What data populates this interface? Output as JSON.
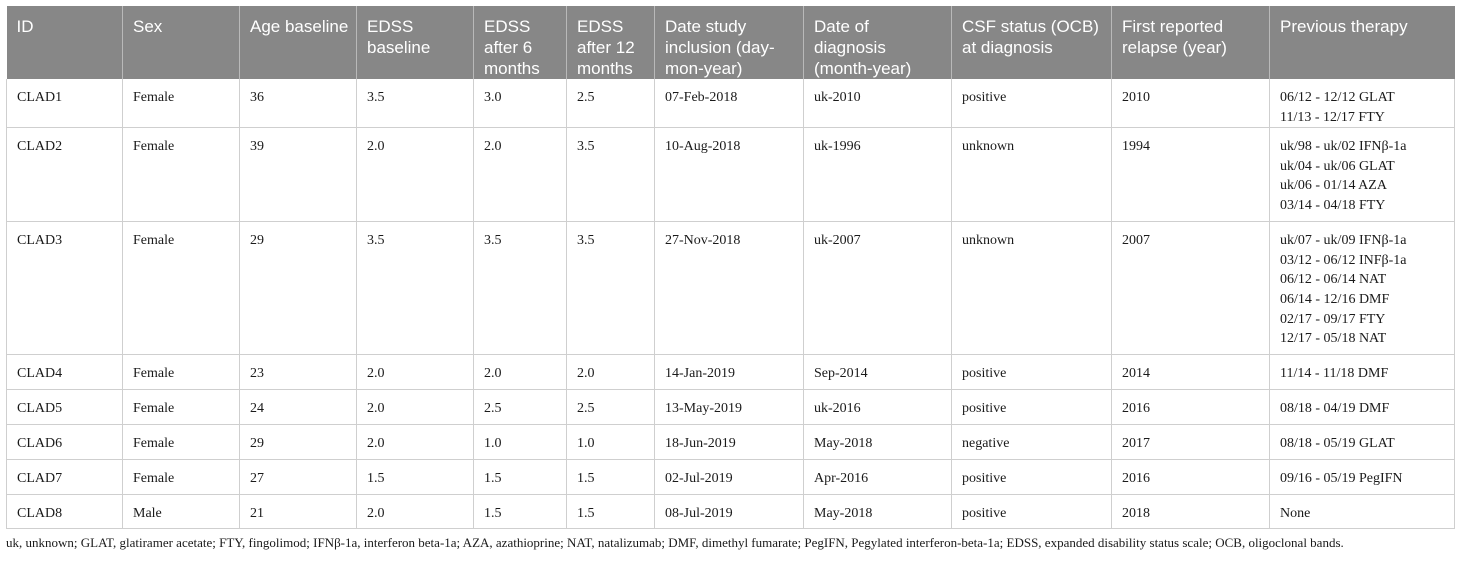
{
  "table": {
    "headers": [
      "ID",
      "Sex",
      "Age baseline",
      "EDSS baseline",
      "EDSS after 6 months",
      "EDSS after 12 months",
      "Date study inclusion (day-mon-year)",
      "Date of diagnosis (month-year)",
      "CSF status (OCB) at diagnosis",
      "First reported relapse (year)",
      "Previous therapy"
    ],
    "rows": [
      {
        "cells": [
          "CLAD1",
          "Female",
          "36",
          "3.5",
          "3.0",
          "2.5",
          "07-Feb-2018",
          "uk-2010",
          "positive",
          "2010"
        ],
        "therapy": [
          "06/12 - 12/12 GLAT",
          "11/13 - 12/17 FTY"
        ]
      },
      {
        "cells": [
          "CLAD2",
          "Female",
          "39",
          "2.0",
          "2.0",
          "3.5",
          "10-Aug-2018",
          "uk-1996",
          "unknown",
          "1994"
        ],
        "therapy": [
          "uk/98 - uk/02 IFNβ-1a",
          "uk/04 - uk/06 GLAT",
          "uk/06 - 01/14 AZA",
          "03/14 - 04/18 FTY"
        ]
      },
      {
        "cells": [
          "CLAD3",
          "Female",
          "29",
          "3.5",
          "3.5",
          "3.5",
          "27-Nov-2018",
          "uk-2007",
          "unknown",
          "2007"
        ],
        "therapy": [
          "uk/07 - uk/09 IFNβ-1a",
          "03/12 - 06/12 INFβ-1a",
          "06/12 - 06/14 NAT",
          "06/14 - 12/16 DMF",
          "02/17 - 09/17 FTY",
          "12/17 - 05/18 NAT"
        ]
      },
      {
        "cells": [
          "CLAD4",
          "Female",
          "23",
          "2.0",
          "2.0",
          "2.0",
          "14-Jan-2019",
          "Sep-2014",
          "positive",
          "2014"
        ],
        "therapy": [
          "11/14 - 11/18 DMF"
        ]
      },
      {
        "cells": [
          "CLAD5",
          "Female",
          "24",
          "2.0",
          "2.5",
          "2.5",
          "13-May-2019",
          "uk-2016",
          "positive",
          "2016"
        ],
        "therapy": [
          "08/18 - 04/19 DMF"
        ]
      },
      {
        "cells": [
          "CLAD6",
          "Female",
          "29",
          "2.0",
          "1.0",
          "1.0",
          "18-Jun-2019",
          "May-2018",
          "negative",
          "2017"
        ],
        "therapy": [
          "08/18 - 05/19 GLAT"
        ]
      },
      {
        "cells": [
          "CLAD7",
          "Female",
          "27",
          "1.5",
          "1.5",
          "1.5",
          "02-Jul-2019",
          "Apr-2016",
          "positive",
          "2016"
        ],
        "therapy": [
          "09/16 - 05/19 PegIFN"
        ]
      },
      {
        "cells": [
          "CLAD8",
          "Male",
          "21",
          "2.0",
          "1.5",
          "1.5",
          "08-Jul-2019",
          "May-2018",
          "positive",
          "2018"
        ],
        "therapy": [
          "None"
        ]
      }
    ]
  },
  "footnote": "uk, unknown; GLAT, glatiramer acetate; FTY, fingolimod; IFNβ-1a, interferon beta-1a; AZA, azathioprine; NAT, natalizumab; DMF, dimethyl fumarate; PegIFN, Pegylated interferon-beta-1a; EDSS, expanded disability status scale; OCB, oligoclonal bands."
}
